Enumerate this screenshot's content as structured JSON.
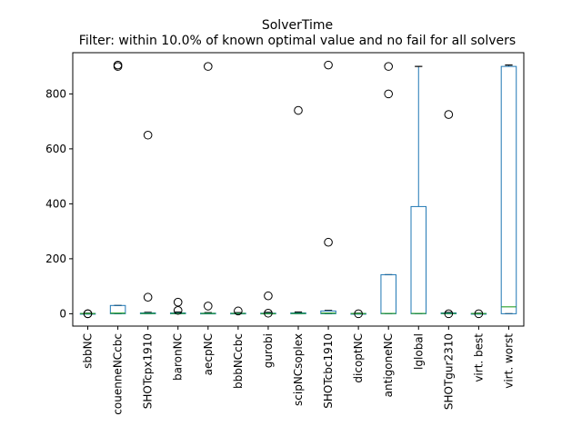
{
  "chart_data": {
    "type": "box",
    "title": "SolverTime",
    "subtitle": "Filter: within 10.0% of known optimal value and no fail for all solvers",
    "xlabel": "",
    "ylabel": "",
    "ylim": [
      -45,
      950
    ],
    "yticks": [
      0,
      200,
      400,
      600,
      800
    ],
    "ytick_labels": [
      "0",
      "200",
      "400",
      "600",
      "800"
    ],
    "grid": false,
    "colors": {
      "box": "#1f77b4",
      "median": "#2ca02c",
      "flier": "#000000"
    },
    "categories": [
      "sbbNC",
      "couenneNCcbc",
      "SHOTcpx1910",
      "baronNC",
      "aecpNC",
      "bbbNCcbc",
      "gurobi",
      "scipNCsoplex",
      "SHOTcbc1910",
      "dicoptNC",
      "antigoneNC",
      "lglobal",
      "SHOTgur2310",
      "virt. best",
      "virt. worst"
    ],
    "boxes": [
      {
        "q1": 0,
        "median": 0.5,
        "q3": 1,
        "whisker_low": 0,
        "whisker_high": 2,
        "fliers": [
          0,
          0
        ]
      },
      {
        "q1": 0,
        "median": 2,
        "q3": 30,
        "whisker_low": 0,
        "whisker_high": 30,
        "fliers": [
          900,
          905
        ]
      },
      {
        "q1": 0,
        "median": 1,
        "q3": 3,
        "whisker_low": 0,
        "whisker_high": 5,
        "fliers": [
          60,
          650
        ]
      },
      {
        "q1": 0,
        "median": 1,
        "q3": 3,
        "whisker_low": 0,
        "whisker_high": 6,
        "fliers": [
          12,
          42
        ]
      },
      {
        "q1": 0,
        "median": 1,
        "q3": 2,
        "whisker_low": 0,
        "whisker_high": 4,
        "fliers": [
          28,
          900
        ]
      },
      {
        "q1": 0,
        "median": 1,
        "q3": 2,
        "whisker_low": 0,
        "whisker_high": 4,
        "fliers": [
          10
        ]
      },
      {
        "q1": 0,
        "median": 0.5,
        "q3": 2,
        "whisker_low": 0,
        "whisker_high": 5,
        "fliers": [
          2,
          65
        ]
      },
      {
        "q1": 0,
        "median": 1,
        "q3": 3,
        "whisker_low": 0,
        "whisker_high": 6,
        "fliers": [
          740
        ]
      },
      {
        "q1": 0,
        "median": 2,
        "q3": 10,
        "whisker_low": 0,
        "whisker_high": 12,
        "fliers": [
          260,
          905
        ]
      },
      {
        "q1": 0,
        "median": 0.5,
        "q3": 1,
        "whisker_low": 0,
        "whisker_high": 2,
        "fliers": [
          0
        ]
      },
      {
        "q1": 0,
        "median": 1,
        "q3": 142,
        "whisker_low": 0,
        "whisker_high": 142,
        "fliers": [
          800,
          900
        ]
      },
      {
        "q1": 0,
        "median": 1,
        "q3": 390,
        "whisker_low": 0,
        "whisker_high": 900,
        "fliers": []
      },
      {
        "q1": 0,
        "median": 1,
        "q3": 3,
        "whisker_low": 0,
        "whisker_high": 5,
        "fliers": [
          0,
          725
        ]
      },
      {
        "q1": 0,
        "median": 0.5,
        "q3": 1,
        "whisker_low": 0,
        "whisker_high": 2,
        "fliers": [
          0
        ]
      },
      {
        "q1": 0,
        "median": 25,
        "q3": 900,
        "whisker_low": 0,
        "whisker_high": 905,
        "fliers": []
      }
    ]
  }
}
